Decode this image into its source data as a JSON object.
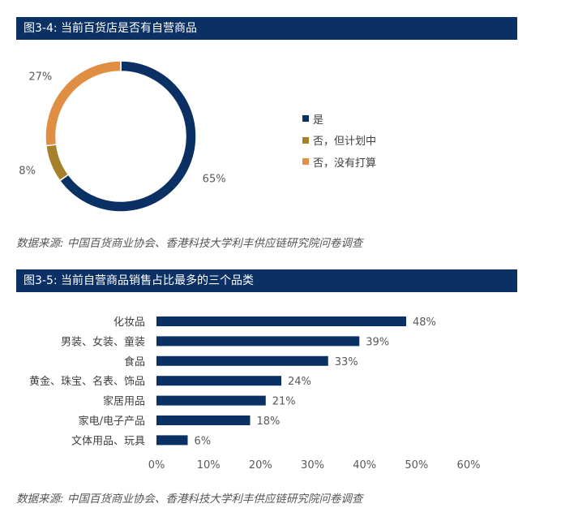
{
  "source_text": "数据来源: 中国百货商业协会、香港科技大学利丰供应链研究院问卷调查",
  "charts": {
    "donut": {
      "title": "图3-4: 当前百货店是否有自营商品",
      "legend": [
        {
          "label": "是"
        },
        {
          "label": "否，但计划中"
        },
        {
          "label": "否，没有打算"
        }
      ]
    },
    "bar": {
      "title": "图3-5: 当前自营商品销售占比最多的三个品类"
    }
  },
  "chart_data": [
    {
      "type": "pie",
      "title": "图3-4: 当前百货店是否有自营商品",
      "categories": [
        "是",
        "否，但计划中",
        "否，没有打算"
      ],
      "values": [
        65,
        8,
        27
      ],
      "labels": [
        "65%",
        "8%",
        "27%"
      ],
      "colors": [
        "#0b3064",
        "#a5822a",
        "#e08e43"
      ],
      "legend_position": "right"
    },
    {
      "type": "bar",
      "orientation": "horizontal",
      "title": "图3-5: 当前自营商品销售占比最多的三个品类",
      "categories": [
        "化妆品",
        "男装、女装、童装",
        "食品",
        "黄金、珠宝、名表、饰品",
        "家居用品",
        "家电/电子产品",
        "文体用品、玩具"
      ],
      "values": [
        48,
        39,
        33,
        24,
        21,
        18,
        6
      ],
      "labels": [
        "48%",
        "39%",
        "33%",
        "24%",
        "21%",
        "18%",
        "6%"
      ],
      "xlim": [
        0,
        60
      ],
      "ticks": [
        0,
        10,
        20,
        30,
        40,
        50,
        60
      ],
      "tick_labels": [
        "0%",
        "10%",
        "20%",
        "30%",
        "40%",
        "50%",
        "60%"
      ],
      "color": "#0b3064",
      "grid": false
    }
  ]
}
